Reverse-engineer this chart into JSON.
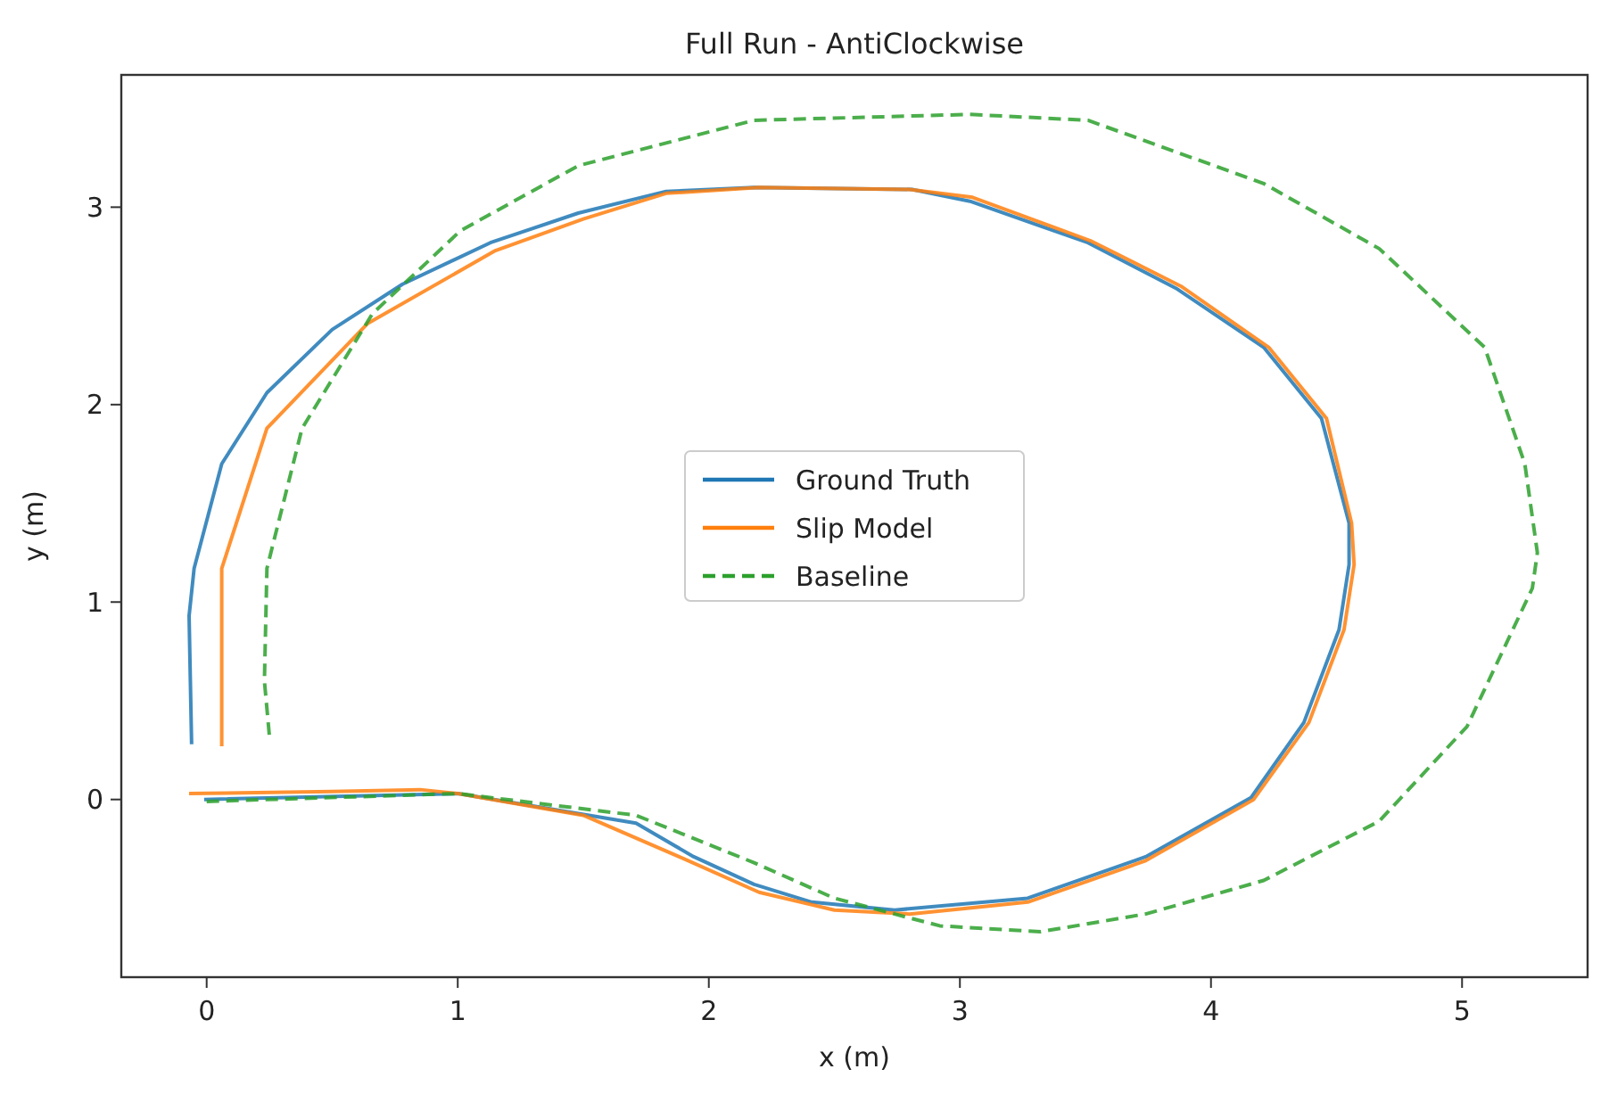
{
  "chart_data": {
    "type": "line",
    "title": "Full Run - AntiClockwise",
    "xlabel": "x (m)",
    "ylabel": "y (m)",
    "xlim": [
      -0.34,
      5.5
    ],
    "ylim": [
      -0.9,
      3.67
    ],
    "xticks": [
      0,
      1,
      2,
      3,
      4,
      5
    ],
    "yticks": [
      0,
      1,
      2,
      3
    ],
    "grid": false,
    "legend": "center",
    "series": [
      {
        "name": "Ground Truth",
        "color": "#1f77b4",
        "line_style": "solid",
        "x": [
          -0.01,
          1.0,
          1.71,
          1.94,
          2.18,
          2.41,
          2.74,
          3.27,
          3.74,
          4.16,
          4.37,
          4.51,
          4.55,
          4.55,
          4.44,
          4.21,
          3.86,
          3.51,
          3.04,
          2.81,
          2.18,
          1.83,
          1.48,
          1.13,
          0.78,
          0.5,
          0.24,
          0.06,
          -0.05,
          -0.07,
          -0.06
        ],
        "values": [
          0.0,
          0.03,
          -0.12,
          -0.29,
          -0.43,
          -0.52,
          -0.56,
          -0.5,
          -0.29,
          0.01,
          0.39,
          0.86,
          1.19,
          1.4,
          1.93,
          2.29,
          2.59,
          2.82,
          3.03,
          3.09,
          3.1,
          3.08,
          2.97,
          2.82,
          2.61,
          2.38,
          2.06,
          1.7,
          1.17,
          0.93,
          0.28
        ]
      },
      {
        "name": "Slip Model",
        "color": "#ff7f0e",
        "line_style": "solid",
        "x": [
          -0.07,
          0.5,
          0.85,
          1.0,
          1.5,
          1.9,
          2.2,
          2.5,
          2.8,
          3.27,
          3.74,
          4.17,
          4.39,
          4.53,
          4.57,
          4.56,
          4.46,
          4.23,
          3.88,
          3.52,
          3.05,
          2.8,
          2.2,
          1.83,
          1.5,
          1.15,
          0.64,
          0.24,
          0.06,
          0.06,
          0.06
        ],
        "values": [
          0.03,
          0.04,
          0.05,
          0.03,
          -0.08,
          -0.3,
          -0.47,
          -0.56,
          -0.58,
          -0.52,
          -0.31,
          0.0,
          0.39,
          0.86,
          1.19,
          1.4,
          1.93,
          2.29,
          2.6,
          2.83,
          3.05,
          3.09,
          3.1,
          3.07,
          2.94,
          2.78,
          2.41,
          1.88,
          1.17,
          0.9,
          0.27
        ]
      },
      {
        "name": "Baseline",
        "color": "#2ca02c",
        "line_style": "dashed",
        "x": [
          0.0,
          1.0,
          1.71,
          2.18,
          2.5,
          2.92,
          3.32,
          3.74,
          4.21,
          4.67,
          5.02,
          5.28,
          5.3,
          5.25,
          5.09,
          4.67,
          4.21,
          3.51,
          3.04,
          2.18,
          1.48,
          1.01,
          0.66,
          0.38,
          0.24,
          0.23,
          0.25
        ],
        "values": [
          -0.01,
          0.03,
          -0.08,
          -0.32,
          -0.5,
          -0.64,
          -0.67,
          -0.58,
          -0.41,
          -0.11,
          0.37,
          1.07,
          1.25,
          1.7,
          2.29,
          2.79,
          3.12,
          3.44,
          3.47,
          3.44,
          3.21,
          2.88,
          2.46,
          1.88,
          1.17,
          0.6,
          0.32
        ]
      }
    ]
  }
}
